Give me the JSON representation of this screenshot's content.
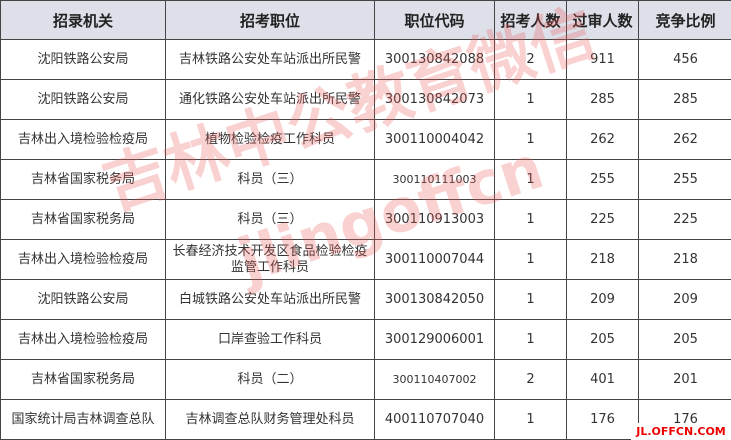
{
  "table": {
    "headers": [
      "招录机关",
      "招考职位",
      "职位代码",
      "招考人数",
      "过审人数",
      "竞争比例"
    ],
    "rows": [
      [
        "沈阳铁路公安局",
        "吉林铁路公安处车站派出所民警",
        "300130842088",
        "2",
        "911",
        "456"
      ],
      [
        "沈阳铁路公安局",
        "通化铁路公安处车站派出所民警",
        "300130842073",
        "1",
        "285",
        "285"
      ],
      [
        "吉林出入境检验检疫局",
        "植物检验检疫工作科员",
        "300110004042",
        "1",
        "262",
        "262"
      ],
      [
        "吉林省国家税务局",
        "科员（三）",
        "300110111003",
        "1",
        "255",
        "255"
      ],
      [
        "吉林省国家税务局",
        "科员（三）",
        "300110913003",
        "1",
        "225",
        "225"
      ],
      [
        "吉林出入境检验检疫局",
        "长春经济技术开发区食品检验检疫监管工作科员",
        "300110007044",
        "1",
        "218",
        "218"
      ],
      [
        "沈阳铁路公安局",
        "白城铁路公安处车站派出所民警",
        "300130842050",
        "1",
        "209",
        "209"
      ],
      [
        "吉林出入境检验检疫局",
        "口岸查验工作科员",
        "300129006001",
        "1",
        "205",
        "205"
      ],
      [
        "吉林省国家税务局",
        "科员（二）",
        "300110407002",
        "2",
        "401",
        "201"
      ],
      [
        "国家统计局吉林调查总队",
        "吉林调查总队财务管理处科员",
        "400110707040",
        "1",
        "176",
        "176"
      ]
    ]
  },
  "watermark": {
    "text": "吉林中公教育微信",
    "sub": "jlingoffcn",
    "site": "JL.OFFCN.COM",
    "color": "#e85a5a"
  }
}
